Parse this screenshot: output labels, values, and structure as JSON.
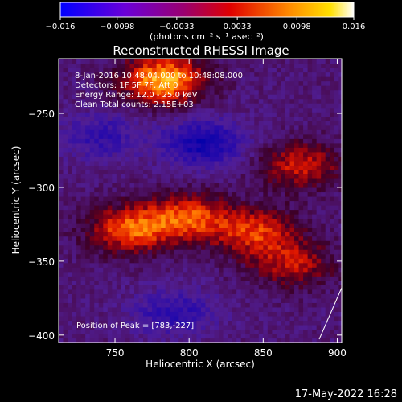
{
  "chart_data": {
    "type": "heatmap",
    "title": "Reconstructed RHESSI Image",
    "xlabel": "Heliocentric X (arcsec)",
    "ylabel": "Heliocentric Y (arcsec)",
    "xlim": [
      712,
      903
    ],
    "ylim": [
      -405,
      -213
    ],
    "xticks": [
      750,
      800,
      850,
      900
    ],
    "yticks": [
      -250,
      -300,
      -350,
      -400
    ],
    "colorbar": {
      "label": "(photons cm⁻² s⁻¹ asec⁻²)",
      "min": -0.016,
      "max": 0.016,
      "ticks": [
        "−0.016",
        "−0.0098",
        "−0.0033",
        "0.0033",
        "0.0098",
        "0.016"
      ],
      "tick_values": [
        -0.016,
        -0.0098,
        -0.0033,
        0.0033,
        0.0098,
        0.016
      ],
      "colormap": [
        "#0000ff",
        "#7a00c8",
        "#b0005a",
        "#ff2a00",
        "#ff9a00",
        "#ffffff"
      ]
    },
    "annotations": [
      " 8-Jan-2016 10:48:04.000 to 10:48:08.000",
      "Detectors: 1F 5F 7F, Att 0",
      "Energy Range: 12.0 - 25.0 keV",
      "Clean    Total counts: 2.15E+03"
    ],
    "peak_label": "Position of Peak = [783,-227]",
    "peak": [
      783,
      -227
    ],
    "features": [
      {
        "name": "bright-ridge-west",
        "x": 760,
        "y": -328,
        "value": 0.012
      },
      {
        "name": "bright-ridge-center",
        "x": 800,
        "y": -320,
        "value": 0.011
      },
      {
        "name": "bright-ridge-east",
        "x": 845,
        "y": -330,
        "value": 0.01
      },
      {
        "name": "peak-top",
        "x": 783,
        "y": -227,
        "value": 0.016
      },
      {
        "name": "east-patch",
        "x": 875,
        "y": -285,
        "value": 0.009
      },
      {
        "name": "lower-east-patch",
        "x": 870,
        "y": -352,
        "value": 0.008
      },
      {
        "name": "negative-center",
        "x": 810,
        "y": -270,
        "value": -0.01
      },
      {
        "name": "negative-west",
        "x": 740,
        "y": -265,
        "value": -0.006
      },
      {
        "name": "negative-south",
        "x": 790,
        "y": -385,
        "value": -0.007
      }
    ]
  },
  "footer": {
    "timestamp": "17-May-2022 16:28"
  }
}
